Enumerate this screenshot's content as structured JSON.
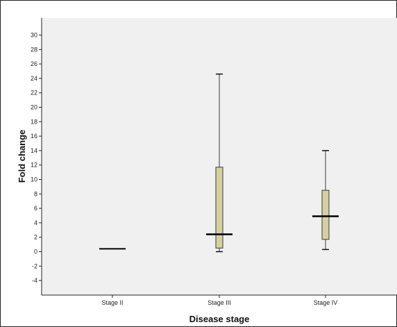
{
  "chart_data": {
    "type": "boxplot",
    "title": "",
    "xlabel": "Disease stage",
    "ylabel": "Fold change",
    "ylim": [
      -6,
      31
    ],
    "yticks": [
      -4,
      -2,
      0,
      2,
      4,
      6,
      8,
      10,
      12,
      14,
      16,
      18,
      20,
      22,
      24,
      26,
      28,
      30
    ],
    "categories": [
      "Stage II",
      "Stage III",
      "Stage IV"
    ],
    "boxes": [
      {
        "category": "Stage II",
        "min": 0.4,
        "q1": 0.4,
        "median": 0.4,
        "q3": 0.4,
        "max": 0.4
      },
      {
        "category": "Stage III",
        "min": 0.0,
        "q1": 0.5,
        "median": 2.4,
        "q3": 11.7,
        "max": 24.6
      },
      {
        "category": "Stage IV",
        "min": 0.3,
        "q1": 1.7,
        "median": 4.9,
        "q3": 8.5,
        "max": 14.0
      }
    ],
    "grid": false,
    "legend": "none",
    "colors": {
      "box_fill": "#d6d0a0",
      "box_stroke": "#3a3a3a",
      "median": "#000000",
      "plot_background": "#f0f0f0",
      "frame": "#222222"
    }
  }
}
